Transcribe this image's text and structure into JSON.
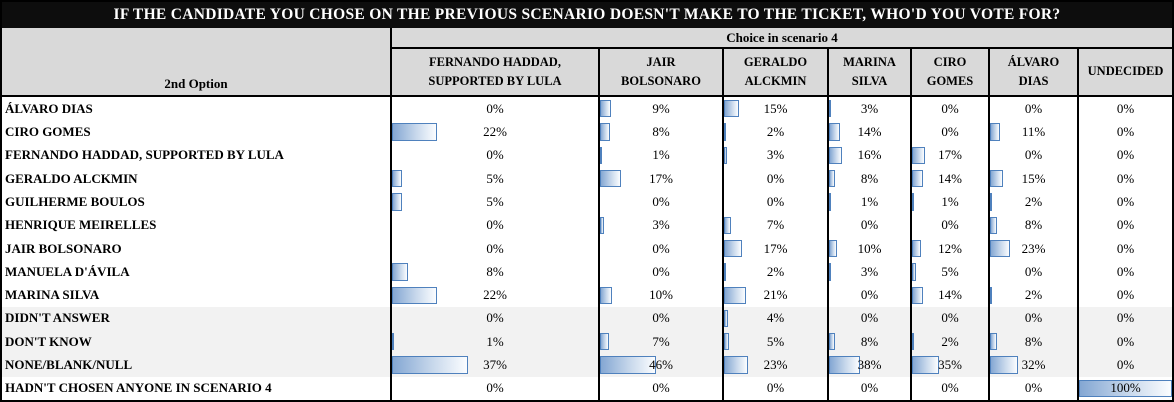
{
  "title": "IF THE CANDIDATE YOU CHOSE ON THE PREVIOUS SCENARIO DOESN'T MAKE TO THE TICKET, WHO'D YOU VOTE FOR?",
  "colors": {
    "title_bg": "#0d0d0d",
    "header_bg": "#d9d9d9",
    "shaded_row_bg": "#f2f2f2",
    "bar_border": "#4f81bd",
    "bar_fill_start": "#84a7d3",
    "bar_fill_end": "#fbfdff"
  },
  "chart_data": {
    "type": "table",
    "title": "IF THE CANDIDATE YOU CHOSE ON THE PREVIOUS SCENARIO DOESN'T MAKE TO THE TICKET, WHO'D YOU VOTE FOR?",
    "group_header": "Choice in scenario 4",
    "row_axis_label": "2nd Option",
    "value_format": "percent",
    "value_range": [
      0,
      100
    ],
    "columns": [
      {
        "label": "FERNANDO HADDAD, SUPPORTED BY LULA",
        "line1": "FERNANDO HADDAD,",
        "line2": "SUPPORTED BY LULA"
      },
      {
        "label": "JAIR BOLSONARO",
        "line1": "JAIR",
        "line2": "BOLSONARO"
      },
      {
        "label": "GERALDO ALCKMIN",
        "line1": "GERALDO",
        "line2": "ALCKMIN"
      },
      {
        "label": "MARINA SILVA",
        "line1": "MARINA",
        "line2": "SILVA"
      },
      {
        "label": "CIRO GOMES",
        "line1": "CIRO",
        "line2": "GOMES"
      },
      {
        "label": "ÁLVARO DIAS",
        "line1": "ÁLVARO",
        "line2": "DIAS"
      },
      {
        "label": "UNDECIDED",
        "line1": "UNDECIDED",
        "line2": ""
      }
    ],
    "rows": [
      {
        "label": "ÁLVARO DIAS",
        "shaded": false,
        "values": [
          0,
          9,
          15,
          3,
          0,
          0,
          0
        ]
      },
      {
        "label": "CIRO GOMES",
        "shaded": false,
        "values": [
          22,
          8,
          2,
          14,
          0,
          11,
          0
        ]
      },
      {
        "label": "FERNANDO HADDAD, SUPPORTED BY LULA",
        "shaded": false,
        "values": [
          0,
          1,
          3,
          16,
          17,
          0,
          0
        ]
      },
      {
        "label": "GERALDO ALCKMIN",
        "shaded": false,
        "values": [
          5,
          17,
          0,
          8,
          14,
          15,
          0
        ]
      },
      {
        "label": "GUILHERME BOULOS",
        "shaded": false,
        "values": [
          5,
          0,
          0,
          1,
          1,
          2,
          0
        ]
      },
      {
        "label": "HENRIQUE MEIRELLES",
        "shaded": false,
        "values": [
          0,
          3,
          7,
          0,
          0,
          8,
          0
        ]
      },
      {
        "label": "JAIR BOLSONARO",
        "shaded": false,
        "values": [
          0,
          0,
          17,
          10,
          12,
          23,
          0
        ]
      },
      {
        "label": "MANUELA D'ÁVILA",
        "shaded": false,
        "values": [
          8,
          0,
          2,
          3,
          5,
          0,
          0
        ]
      },
      {
        "label": "MARINA SILVA",
        "shaded": false,
        "values": [
          22,
          10,
          21,
          0,
          14,
          2,
          0
        ]
      },
      {
        "label": "DIDN'T ANSWER",
        "shaded": true,
        "values": [
          0,
          0,
          4,
          0,
          0,
          0,
          0
        ]
      },
      {
        "label": "DON'T KNOW",
        "shaded": true,
        "values": [
          1,
          7,
          5,
          8,
          2,
          8,
          0
        ]
      },
      {
        "label": "NONE/BLANK/NULL",
        "shaded": true,
        "values": [
          37,
          46,
          23,
          38,
          35,
          32,
          0
        ]
      },
      {
        "label": "HADN'T CHOSEN ANYONE IN SCENARIO 4",
        "shaded": false,
        "values": [
          0,
          0,
          0,
          0,
          0,
          0,
          100
        ]
      }
    ]
  }
}
